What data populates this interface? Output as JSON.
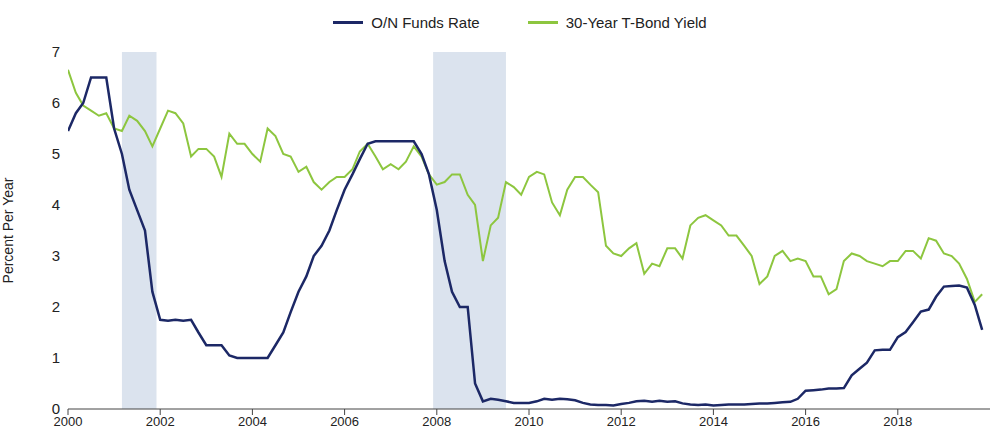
{
  "chart_data": {
    "type": "line",
    "y_label": "Percent Per Year",
    "x": [
      2000.0,
      2000.17,
      2000.33,
      2000.5,
      2000.67,
      2000.83,
      2001.0,
      2001.17,
      2001.33,
      2001.5,
      2001.67,
      2001.83,
      2002.0,
      2002.17,
      2002.33,
      2002.5,
      2002.67,
      2002.83,
      2003.0,
      2003.17,
      2003.33,
      2003.5,
      2003.67,
      2003.83,
      2004.0,
      2004.17,
      2004.33,
      2004.5,
      2004.67,
      2004.83,
      2005.0,
      2005.17,
      2005.33,
      2005.5,
      2005.67,
      2005.83,
      2006.0,
      2006.17,
      2006.33,
      2006.5,
      2006.67,
      2006.83,
      2007.0,
      2007.17,
      2007.33,
      2007.5,
      2007.67,
      2007.83,
      2008.0,
      2008.17,
      2008.33,
      2008.5,
      2008.67,
      2008.83,
      2009.0,
      2009.17,
      2009.33,
      2009.5,
      2009.67,
      2009.83,
      2010.0,
      2010.17,
      2010.33,
      2010.5,
      2010.67,
      2010.83,
      2011.0,
      2011.17,
      2011.33,
      2011.5,
      2011.67,
      2011.83,
      2012.0,
      2012.17,
      2012.33,
      2012.5,
      2012.67,
      2012.83,
      2013.0,
      2013.17,
      2013.33,
      2013.5,
      2013.67,
      2013.83,
      2014.0,
      2014.17,
      2014.33,
      2014.5,
      2014.67,
      2014.83,
      2015.0,
      2015.17,
      2015.33,
      2015.5,
      2015.67,
      2015.83,
      2016.0,
      2016.17,
      2016.33,
      2016.5,
      2016.67,
      2016.83,
      2017.0,
      2017.17,
      2017.33,
      2017.5,
      2017.67,
      2017.83,
      2018.0,
      2018.17,
      2018.33,
      2018.5,
      2018.67,
      2018.83,
      2019.0,
      2019.17,
      2019.33,
      2019.5,
      2019.67,
      2019.83
    ],
    "series": [
      {
        "name": "O/N Funds Rate",
        "color": "#1c2866",
        "values": [
          5.45,
          5.8,
          6.0,
          6.5,
          6.5,
          6.5,
          5.5,
          5.0,
          4.3,
          3.9,
          3.5,
          2.3,
          1.75,
          1.73,
          1.75,
          1.73,
          1.75,
          1.5,
          1.25,
          1.25,
          1.25,
          1.05,
          1.0,
          1.0,
          1.0,
          1.0,
          1.0,
          1.25,
          1.5,
          1.9,
          2.3,
          2.6,
          3.0,
          3.2,
          3.5,
          3.9,
          4.3,
          4.6,
          4.9,
          5.2,
          5.25,
          5.25,
          5.25,
          5.25,
          5.25,
          5.25,
          5.0,
          4.6,
          3.9,
          2.9,
          2.3,
          2.0,
          2.0,
          0.5,
          0.15,
          0.2,
          0.18,
          0.15,
          0.12,
          0.12,
          0.12,
          0.15,
          0.2,
          0.18,
          0.2,
          0.19,
          0.17,
          0.12,
          0.09,
          0.08,
          0.08,
          0.07,
          0.1,
          0.12,
          0.15,
          0.16,
          0.14,
          0.16,
          0.14,
          0.15,
          0.11,
          0.09,
          0.08,
          0.09,
          0.07,
          0.08,
          0.09,
          0.09,
          0.09,
          0.1,
          0.11,
          0.11,
          0.12,
          0.13,
          0.14,
          0.2,
          0.36,
          0.37,
          0.38,
          0.4,
          0.4,
          0.41,
          0.66,
          0.79,
          0.91,
          1.15,
          1.16,
          1.16,
          1.41,
          1.51,
          1.7,
          1.91,
          1.95,
          2.2,
          2.4,
          2.41,
          2.42,
          2.38,
          2.04,
          1.55
        ]
      },
      {
        "name": "30-Year T-Bond Yield",
        "color": "#8dc63f",
        "values": [
          6.65,
          6.2,
          5.95,
          5.85,
          5.75,
          5.8,
          5.5,
          5.45,
          5.75,
          5.65,
          5.45,
          5.15,
          5.5,
          5.85,
          5.8,
          5.6,
          4.95,
          5.1,
          5.1,
          4.95,
          4.55,
          5.4,
          5.2,
          5.2,
          5.0,
          4.85,
          5.5,
          5.35,
          5.0,
          4.95,
          4.65,
          4.75,
          4.45,
          4.3,
          4.45,
          4.55,
          4.55,
          4.7,
          5.05,
          5.2,
          4.95,
          4.7,
          4.8,
          4.7,
          4.85,
          5.15,
          4.95,
          4.6,
          4.4,
          4.45,
          4.6,
          4.6,
          4.2,
          4.0,
          2.9,
          3.6,
          3.75,
          4.45,
          4.35,
          4.2,
          4.55,
          4.65,
          4.6,
          4.05,
          3.8,
          4.3,
          4.55,
          4.55,
          4.4,
          4.25,
          3.2,
          3.05,
          3.0,
          3.15,
          3.25,
          2.65,
          2.85,
          2.8,
          3.15,
          3.15,
          2.95,
          3.6,
          3.75,
          3.8,
          3.7,
          3.6,
          3.4,
          3.4,
          3.2,
          3.0,
          2.45,
          2.6,
          3.0,
          3.1,
          2.9,
          2.95,
          2.9,
          2.6,
          2.6,
          2.25,
          2.35,
          2.9,
          3.05,
          3.0,
          2.9,
          2.85,
          2.8,
          2.9,
          2.9,
          3.1,
          3.1,
          2.95,
          3.35,
          3.3,
          3.05,
          3.0,
          2.85,
          2.55,
          2.1,
          2.25
        ]
      }
    ],
    "shaded_x_ranges": [
      [
        2001.17,
        2001.92
      ],
      [
        2007.92,
        2009.5
      ]
    ],
    "xlim": [
      2000,
      2020
    ],
    "xticks": [
      2000,
      2002,
      2004,
      2006,
      2008,
      2010,
      2012,
      2014,
      2016,
      2018
    ],
    "ylim": [
      0,
      7
    ],
    "yticks": [
      0,
      1,
      2,
      3,
      4,
      5,
      6,
      7
    ],
    "grid": false,
    "legend": "top"
  }
}
